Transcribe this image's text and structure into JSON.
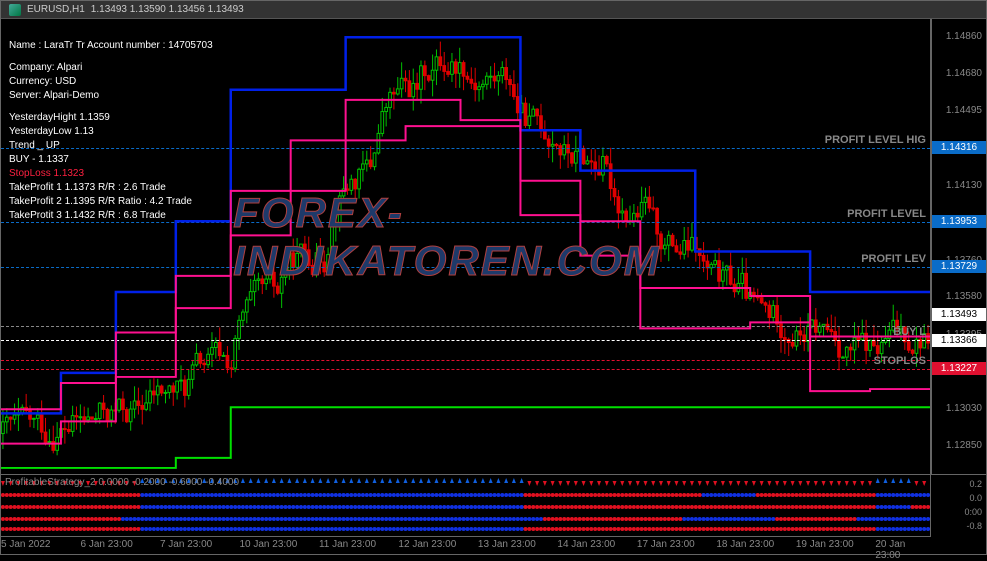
{
  "header": {
    "symbol": "EURUSD,H1",
    "ohlc": "1.13493 1.13590 1.13456 1.13493"
  },
  "info": {
    "name": "Name : LaraTr Tr Account number : 14705703",
    "company": "Company: Alpari",
    "currency": "Currency: USD",
    "server": "Server: Alpari-Demo",
    "yh": "YesterdayHight 1.1359",
    "yl": "YesterdayLow 1.13",
    "trend": "Trend _ UP",
    "buy": "BUY - 1.1337",
    "sl": "StopLoss 1.1323",
    "tp1": "TakeProfit 1 1.1373 R/R : 2.6  Trade",
    "tp2": "TakeProfit 2 1.1395 R/R Ratio : 4.2 Trade",
    "tp3": "TakeProtit 3 1.1432 R/R : 6.8  Trade"
  },
  "price_axis": {
    "min": 1.127,
    "max": 1.1495,
    "ticks": [
      "1.14860",
      "1.14680",
      "1.14495",
      "1.14316",
      "1.14130",
      "1.13953",
      "1.13760",
      "1.13729",
      "1.13580",
      "1.13493",
      "1.13395",
      "1.13366",
      "1.13227",
      "1.13030",
      "1.12850"
    ]
  },
  "price_labels": [
    {
      "val": 1.14316,
      "txt": "1.14316",
      "bg": "#0a6cc8",
      "fg": "#fff"
    },
    {
      "val": 1.13953,
      "txt": "1.13953",
      "bg": "#0a6cc8",
      "fg": "#fff"
    },
    {
      "val": 1.13729,
      "txt": "1.13729",
      "bg": "#0a6cc8",
      "fg": "#fff"
    },
    {
      "val": 1.13493,
      "txt": "1.13493",
      "bg": "#fff",
      "fg": "#000"
    },
    {
      "val": 1.13366,
      "txt": "1.13366",
      "bg": "#fff",
      "fg": "#000"
    },
    {
      "val": 1.13227,
      "txt": "1.13227",
      "bg": "#e01030",
      "fg": "#fff"
    }
  ],
  "hlines": [
    {
      "val": 1.14316,
      "color": "#0a6cc8",
      "style": "dashed",
      "label": "PROFIT LEVEL HIG"
    },
    {
      "val": 1.13953,
      "color": "#0a6cc8",
      "style": "dashed",
      "label": "PROFIT LEVEL"
    },
    {
      "val": 1.13729,
      "color": "#0a6cc8",
      "style": "dashed",
      "label": "PROFIT LEV"
    },
    {
      "val": 1.1344,
      "color": "#888",
      "style": "dashdot",
      "label": ""
    },
    {
      "val": 1.1337,
      "color": "#fff",
      "style": "dashed",
      "label": "BUY L"
    },
    {
      "val": 1.1327,
      "color": "#e01030",
      "style": "dashdot",
      "label": ""
    },
    {
      "val": 1.13227,
      "color": "#e01030",
      "style": "dashed",
      "label": "STOPLOS"
    }
  ],
  "time_ticks": [
    "5 Jan 2022",
    "6 Jan 23:00",
    "7 Jan 23:00",
    "10 Jan 23:00",
    "11 Jan 23:00",
    "12 Jan 23:00",
    "13 Jan 23:00",
    "14 Jan 23:00",
    "17 Jan 23:00",
    "18 Jan 23:00",
    "19 Jan 23:00",
    "20 Jan 23:00"
  ],
  "sub": {
    "label": "ProfitableStrategy_2 0.0000 -0.2000 -0.6000 -0.4000",
    "ticks": [
      "0.2",
      "0.0",
      "0:00",
      "-0.8"
    ]
  },
  "colors": {
    "bull": "#00c000",
    "bear": "#e00000",
    "blue_line": "#0020e8",
    "pink_line": "#ff1090",
    "green_line": "#00e000",
    "dot_blue": "#1030e0",
    "dot_red": "#e01020",
    "arrow_up": "#1060e0",
    "arrow_dn": "#e01020"
  },
  "step_lines": {
    "blue": [
      [
        0,
        1.13
      ],
      [
        60,
        1.13
      ],
      [
        60,
        1.132
      ],
      [
        115,
        1.132
      ],
      [
        115,
        1.136
      ],
      [
        175,
        1.136
      ],
      [
        175,
        1.1395
      ],
      [
        230,
        1.1395
      ],
      [
        230,
        1.146
      ],
      [
        345,
        1.146
      ],
      [
        345,
        1.1486
      ],
      [
        520,
        1.1486
      ],
      [
        520,
        1.144
      ],
      [
        580,
        1.144
      ],
      [
        580,
        1.142
      ],
      [
        695,
        1.142
      ],
      [
        695,
        1.138
      ],
      [
        810,
        1.138
      ],
      [
        810,
        1.136
      ],
      [
        930,
        1.136
      ]
    ],
    "pink": [
      [
        0,
        1.1285
      ],
      [
        60,
        1.1285
      ],
      [
        60,
        1.1296
      ],
      [
        115,
        1.1296
      ],
      [
        115,
        1.1318
      ],
      [
        175,
        1.1318
      ],
      [
        175,
        1.1352
      ],
      [
        230,
        1.1352
      ],
      [
        230,
        1.1388
      ],
      [
        290,
        1.1388
      ],
      [
        290,
        1.1435
      ],
      [
        405,
        1.1435
      ],
      [
        405,
        1.1442
      ],
      [
        520,
        1.1442
      ],
      [
        520,
        1.1398
      ],
      [
        580,
        1.1398
      ],
      [
        580,
        1.1378
      ],
      [
        640,
        1.1378
      ],
      [
        640,
        1.1342
      ],
      [
        750,
        1.1342
      ],
      [
        750,
        1.1345
      ],
      [
        810,
        1.1345
      ],
      [
        810,
        1.1311
      ],
      [
        870,
        1.1311
      ],
      [
        870,
        1.1312
      ],
      [
        930,
        1.1312
      ]
    ],
    "pink2": [
      [
        0,
        1.1302
      ],
      [
        60,
        1.1302
      ],
      [
        60,
        1.1315
      ],
      [
        115,
        1.1315
      ],
      [
        115,
        1.134
      ],
      [
        175,
        1.134
      ],
      [
        175,
        1.1368
      ],
      [
        230,
        1.1368
      ],
      [
        230,
        1.141
      ],
      [
        345,
        1.141
      ],
      [
        345,
        1.1455
      ],
      [
        460,
        1.1455
      ],
      [
        460,
        1.1445
      ],
      [
        520,
        1.1445
      ],
      [
        520,
        1.1415
      ],
      [
        580,
        1.1415
      ],
      [
        580,
        1.1395
      ],
      [
        640,
        1.1395
      ],
      [
        640,
        1.1362
      ],
      [
        750,
        1.1362
      ],
      [
        750,
        1.1358
      ],
      [
        810,
        1.1358
      ],
      [
        810,
        1.1338
      ],
      [
        930,
        1.1338
      ]
    ],
    "green": [
      [
        0,
        1.1273
      ],
      [
        175,
        1.1273
      ],
      [
        175,
        1.1278
      ],
      [
        230,
        1.1278
      ],
      [
        230,
        1.1303
      ],
      [
        930,
        1.1303
      ]
    ]
  },
  "watermark": "FOREX-INDIKATOREN.COM"
}
